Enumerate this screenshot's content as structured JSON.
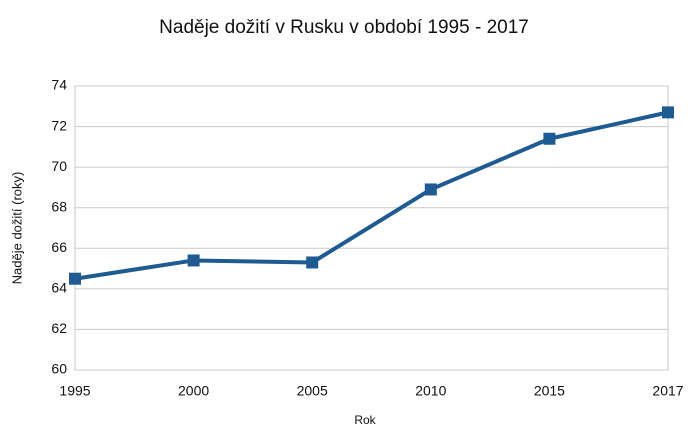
{
  "chart_data": {
    "type": "line",
    "title": "Naděje dožití v Rusku v období 1995 - 2017",
    "x_label": "Rok",
    "y_label": "Naděje dožití (roky)",
    "categories": [
      "1995",
      "2000",
      "2005",
      "2010",
      "2015",
      "2017"
    ],
    "series": [
      {
        "name": "Naděje dožití",
        "color": "#1f5b93",
        "values": [
          64.5,
          65.4,
          65.3,
          68.9,
          71.4,
          72.7
        ]
      }
    ],
    "ylim": [
      60,
      74
    ],
    "yticks": [
      60,
      62,
      64,
      66,
      68,
      70,
      72,
      74
    ],
    "grid": true
  }
}
